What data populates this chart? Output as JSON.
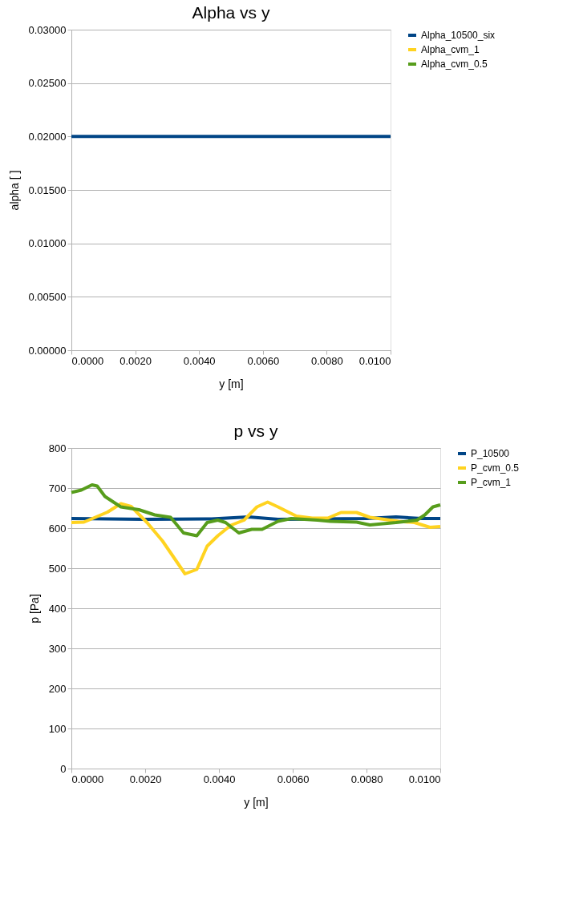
{
  "chart_data": [
    {
      "type": "line",
      "title": "Alpha vs y",
      "xlabel": "y [m]",
      "ylabel": "alpha [ ]",
      "x": [
        0,
        0.01
      ],
      "series": [
        {
          "name": "Alpha_10500_six",
          "color": "#004586",
          "values": [
            0.02,
            0.02
          ]
        },
        {
          "name": "Alpha_cvm_1",
          "color": "#ffd320",
          "values": [
            null,
            null
          ]
        },
        {
          "name": "Alpha_cvm_0.5",
          "color": "#579d1c",
          "values": [
            null,
            null
          ]
        }
      ],
      "xlim": [
        0,
        0.01
      ],
      "ylim": [
        0,
        0.03
      ],
      "xticks": [
        {
          "value": 0,
          "label": "0.0000"
        },
        {
          "value": 0.002,
          "label": "0.0020"
        },
        {
          "value": 0.004,
          "label": "0.0040"
        },
        {
          "value": 0.006,
          "label": "0.0060"
        },
        {
          "value": 0.008,
          "label": "0.0080"
        },
        {
          "value": 0.01,
          "label": "0.0100"
        }
      ],
      "yticks": [
        {
          "value": 0,
          "label": "0.00000"
        },
        {
          "value": 0.005,
          "label": "0.00500"
        },
        {
          "value": 0.01,
          "label": "0.01000"
        },
        {
          "value": 0.015,
          "label": "0.01500"
        },
        {
          "value": 0.02,
          "label": "0.02000"
        },
        {
          "value": 0.025,
          "label": "0.02500"
        },
        {
          "value": 0.03,
          "label": "0.03000"
        }
      ],
      "grid": "y",
      "legend": "right",
      "marker": "none",
      "line_style": "solid"
    },
    {
      "type": "line",
      "title": "p vs y",
      "xlabel": "y [m]",
      "ylabel": "p [Pa]",
      "series": [
        {
          "name": "P_10500",
          "color": "#004586",
          "x": [
            0,
            0.002,
            0.0038,
            0.0048,
            0.0056,
            0.008,
            0.0088,
            0.0095,
            0.01
          ],
          "values": [
            624,
            622,
            623,
            628,
            622,
            624,
            628,
            624,
            624
          ]
        },
        {
          "name": "P_cvm_0.5",
          "color": "#ffd320",
          "x": [
            0,
            0.00034,
            0.00098,
            0.00134,
            0.00162,
            0.00205,
            0.00247,
            0.00308,
            0.0034,
            0.00368,
            0.00397,
            0.00432,
            0.00468,
            0.00503,
            0.00532,
            0.0056,
            0.0061,
            0.00653,
            0.00695,
            0.00731,
            0.00773,
            0.00809,
            0.00887,
            0.0093,
            0.00972,
            0.01
          ],
          "values": [
            614,
            615,
            640,
            661,
            654,
            614,
            568,
            486,
            497,
            555,
            581,
            607,
            620,
            653,
            665,
            653,
            630,
            625,
            625,
            639,
            639,
            627,
            617,
            614,
            602,
            604
          ]
        },
        {
          "name": "P_cvm_1",
          "color": "#579d1c",
          "x": [
            0,
            0.00027,
            0.00056,
            0.0007,
            0.00091,
            0.00134,
            0.00183,
            0.00226,
            0.00269,
            0.00304,
            0.0034,
            0.00368,
            0.00397,
            0.00418,
            0.00454,
            0.00489,
            0.00517,
            0.0056,
            0.00596,
            0.00667,
            0.00702,
            0.00773,
            0.00809,
            0.0088,
            0.00937,
            0.00958,
            0.0098,
            0.01
          ],
          "values": [
            689,
            695,
            708,
            705,
            679,
            653,
            646,
            633,
            627,
            588,
            581,
            614,
            620,
            614,
            588,
            597,
            597,
            617,
            624,
            620,
            617,
            615,
            608,
            614,
            620,
            633,
            653,
            658
          ]
        }
      ],
      "xlim": [
        0,
        0.01
      ],
      "ylim": [
        0,
        800
      ],
      "xticks": [
        {
          "value": 0,
          "label": "0.0000"
        },
        {
          "value": 0.002,
          "label": "0.0020"
        },
        {
          "value": 0.004,
          "label": "0.0040"
        },
        {
          "value": 0.006,
          "label": "0.0060"
        },
        {
          "value": 0.008,
          "label": "0.0080"
        },
        {
          "value": 0.01,
          "label": "0.0100"
        }
      ],
      "yticks": [
        0,
        100,
        200,
        300,
        400,
        500,
        600,
        700,
        800
      ],
      "grid": "y",
      "legend": "right",
      "marker": "none",
      "line_style": "solid"
    }
  ]
}
